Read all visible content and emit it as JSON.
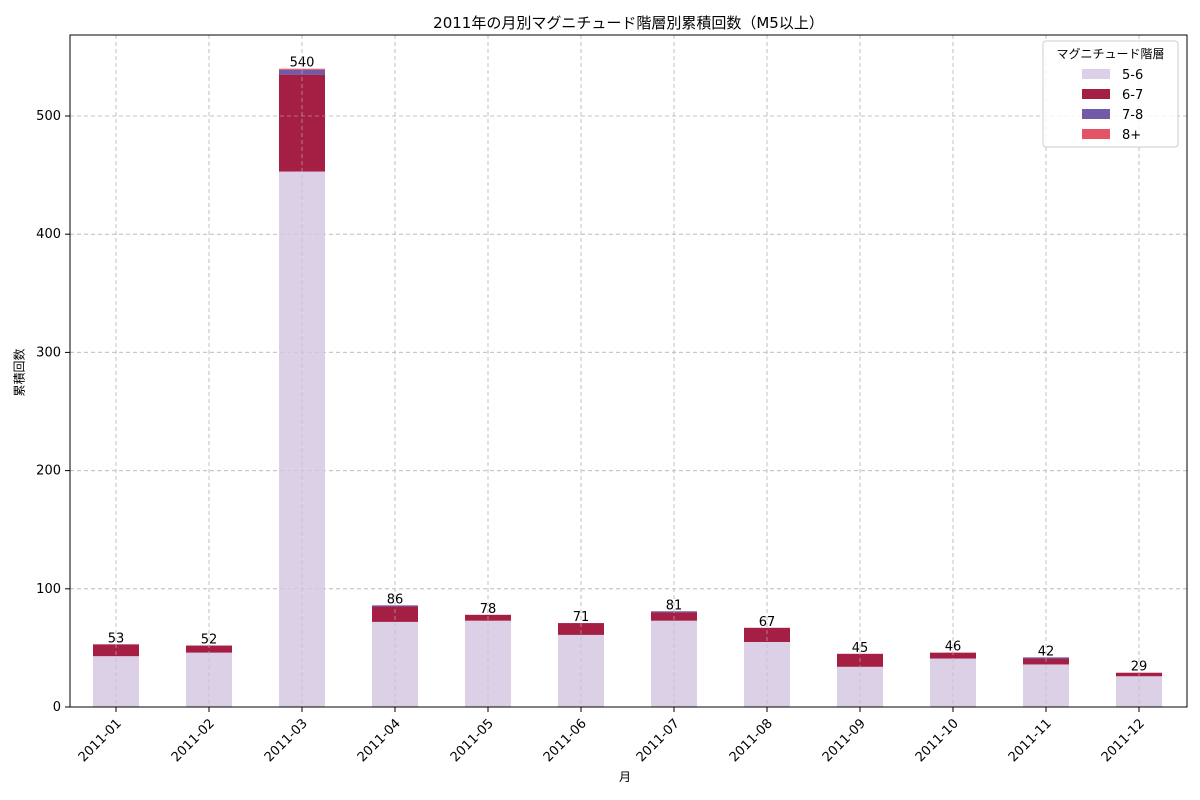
{
  "chart_data": {
    "type": "bar",
    "stacked": true,
    "title": "2011年の月別マグニチュード階層別累積回数（M5以上）",
    "xlabel": "月",
    "ylabel": "累積回数",
    "ylim": [
      0,
      568
    ],
    "yticks": [
      0,
      100,
      200,
      300,
      400,
      500
    ],
    "grid": true,
    "legend_title": "マグニチュード階層",
    "legend_position": "upper right",
    "categories": [
      "2011-01",
      "2011-02",
      "2011-03",
      "2011-04",
      "2011-05",
      "2011-06",
      "2011-07",
      "2011-08",
      "2011-09",
      "2011-10",
      "2011-11",
      "2011-12"
    ],
    "series": [
      {
        "name": "5-6",
        "color": "#dcd0e6",
        "values": [
          43,
          46,
          453,
          72,
          73,
          61,
          73,
          55,
          34,
          41,
          36,
          26
        ]
      },
      {
        "name": "6-7",
        "color": "#a51f45",
        "values": [
          10,
          6,
          82,
          13,
          5,
          10,
          7,
          12,
          11,
          5,
          5,
          3
        ]
      },
      {
        "name": "7-8",
        "color": "#715aa6",
        "values": [
          0,
          0,
          4,
          1,
          0,
          0,
          1,
          0,
          0,
          0,
          1,
          0
        ]
      },
      {
        "name": "8+",
        "color": "#e35566",
        "values": [
          0,
          0,
          1,
          0,
          0,
          0,
          0,
          0,
          0,
          0,
          0,
          0
        ]
      }
    ],
    "totals": [
      53,
      52,
      540,
      86,
      78,
      71,
      81,
      67,
      45,
      46,
      42,
      29
    ]
  }
}
